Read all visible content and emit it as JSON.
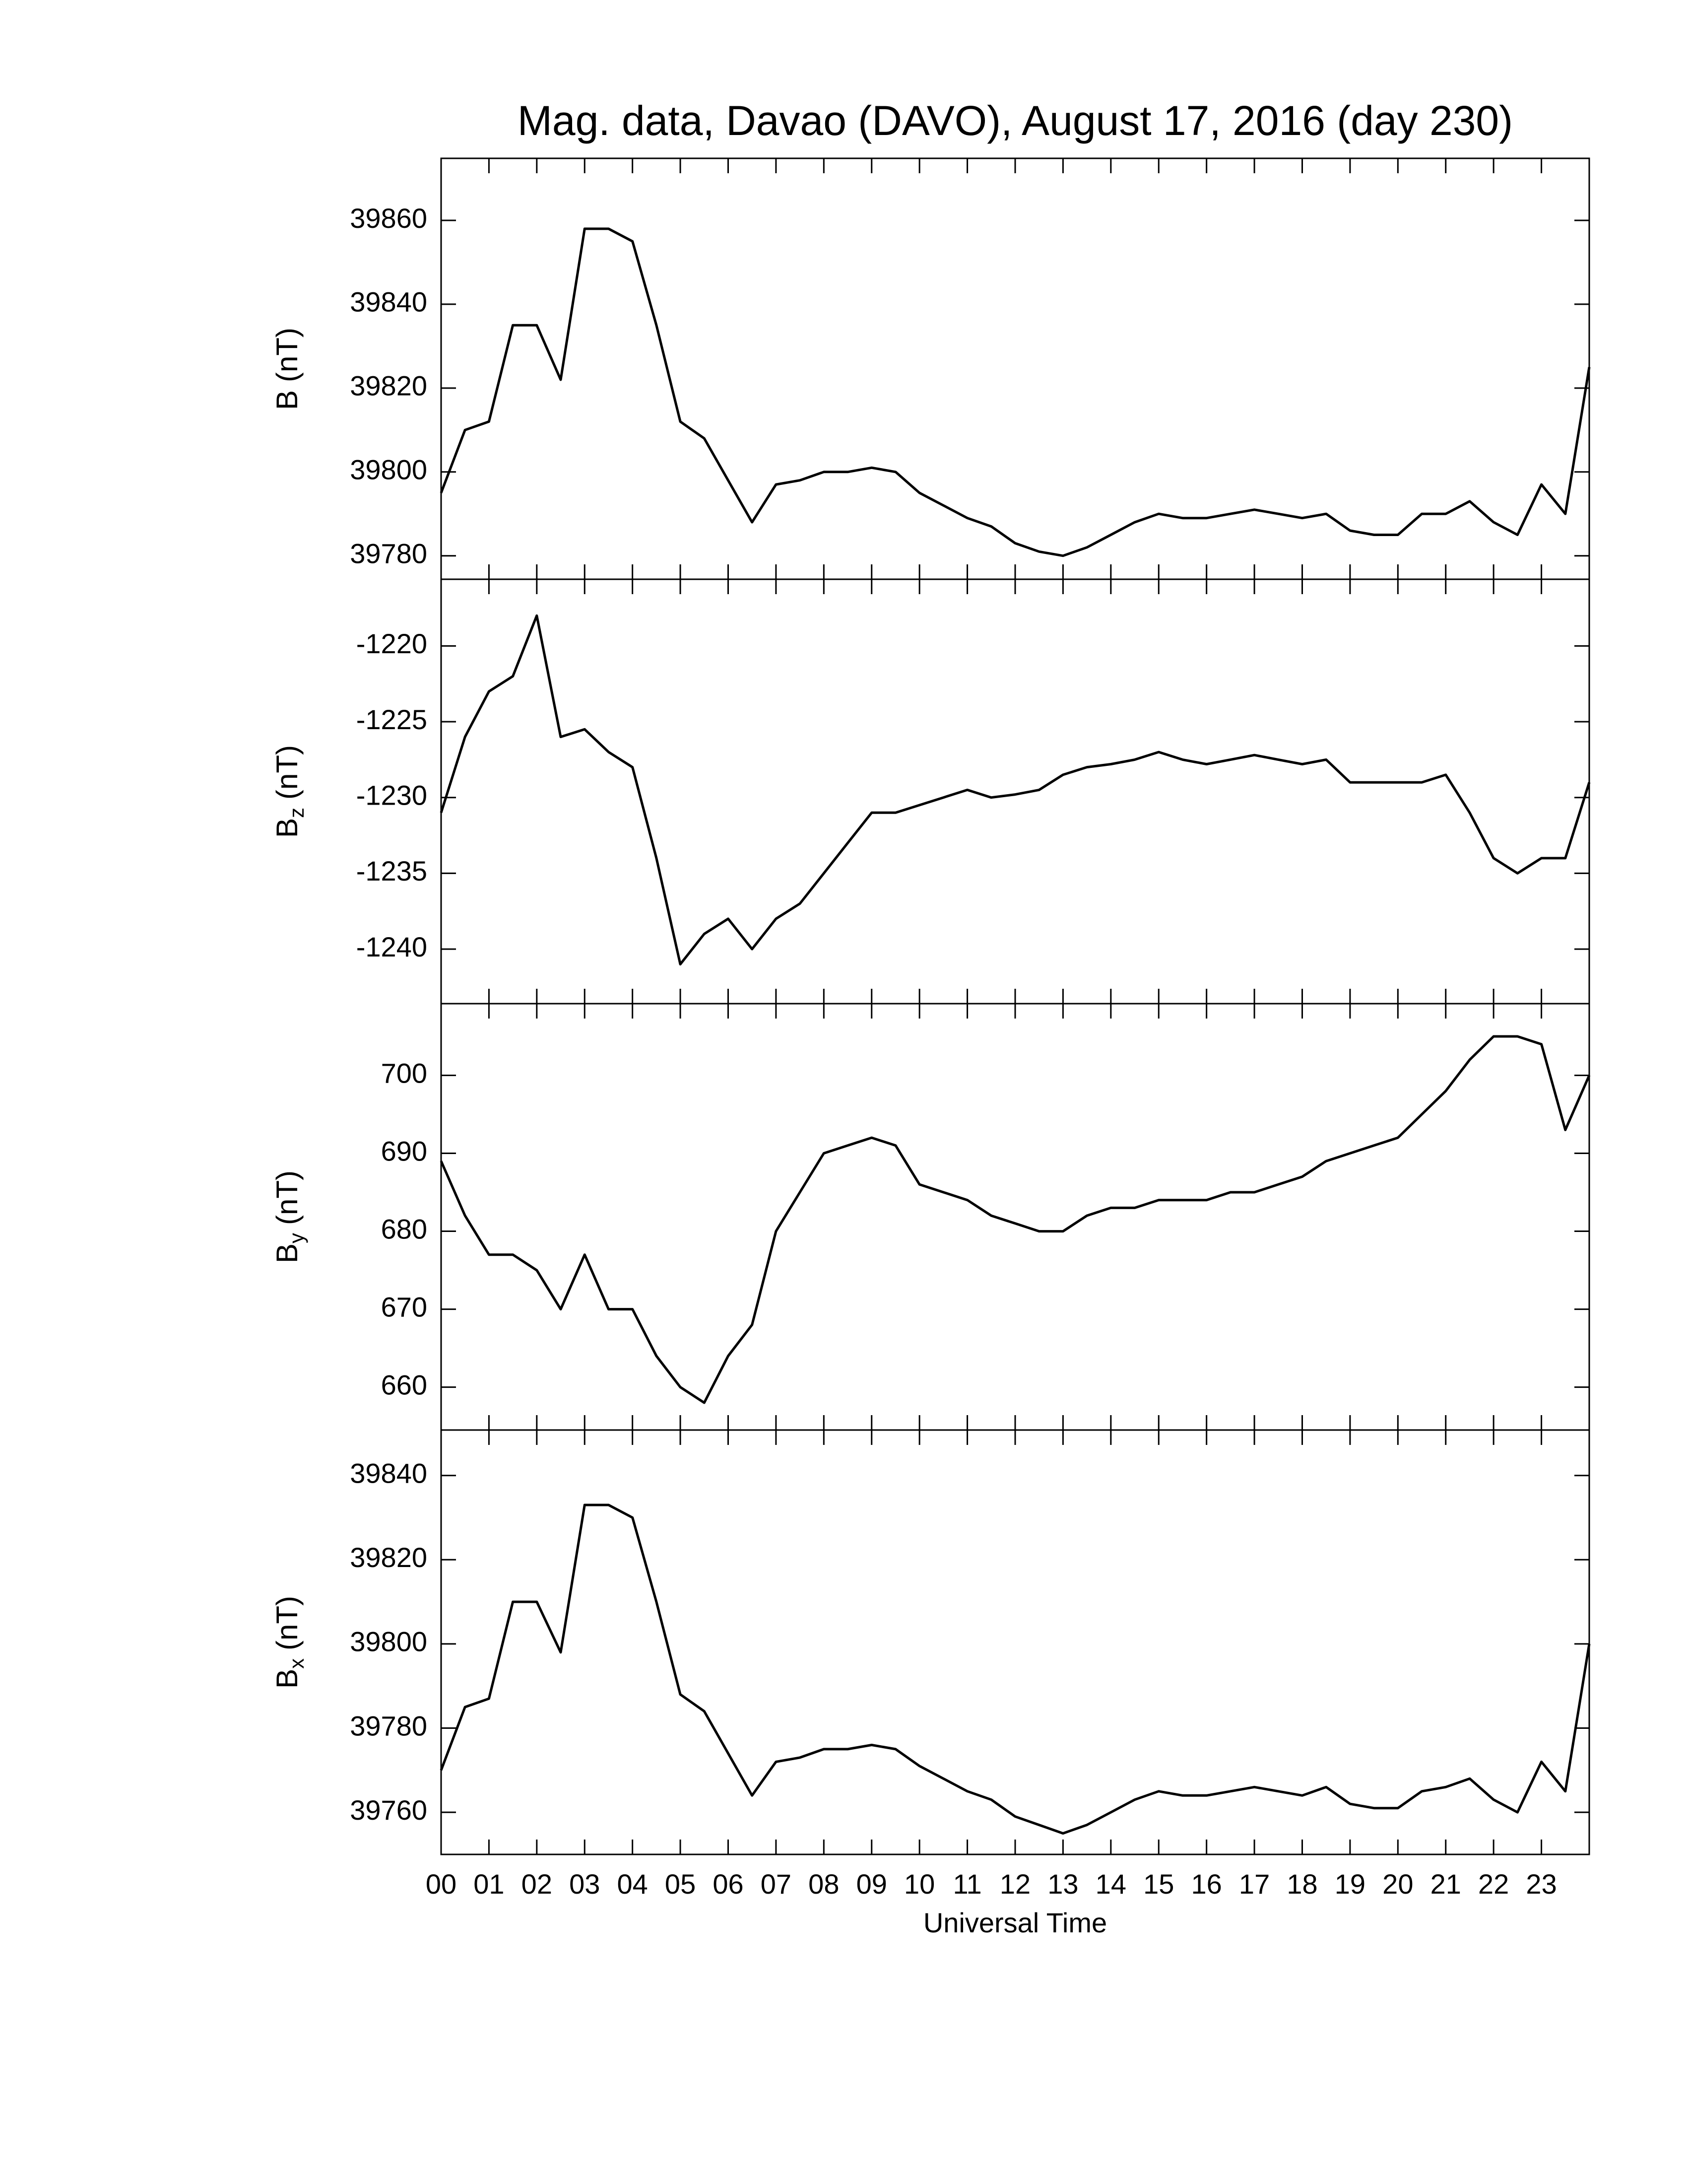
{
  "chart_data": [
    {
      "type": "line",
      "title": "Mag. data, Davao (DAVO), August 17, 2016 (day 230)",
      "ylabel_main": "B",
      "ylabel_unit": "(nT)",
      "color": "#000000",
      "x": [
        0,
        0.5,
        1,
        1.5,
        2,
        2.5,
        3,
        3.5,
        4,
        4.5,
        5,
        5.5,
        6,
        6.5,
        7,
        7.5,
        8,
        8.5,
        9,
        9.5,
        10,
        10.5,
        11,
        11.5,
        12,
        12.5,
        13,
        13.5,
        14,
        14.5,
        15,
        15.5,
        16,
        16.5,
        17,
        17.5,
        18,
        18.5,
        19,
        19.5,
        20,
        20.5,
        21,
        21.5,
        22,
        22.5,
        23,
        23.5,
        24
      ],
      "values": [
        39795,
        39810,
        39812,
        39835,
        39835,
        39822,
        39858,
        39858,
        39855,
        39835,
        39812,
        39808,
        39798,
        39788,
        39797,
        39798,
        39800,
        39800,
        39801,
        39800,
        39795,
        39792,
        39789,
        39787,
        39783,
        39781,
        39780,
        39782,
        39785,
        39788,
        39790,
        39789,
        39789,
        39790,
        39791,
        39790,
        39789,
        39790,
        39786,
        39785,
        39785,
        39790,
        39790,
        39793,
        39788,
        39785,
        39797,
        39790,
        39825
      ],
      "xlim": [
        0,
        24
      ],
      "ylim": [
        39774.4,
        39874.8
      ],
      "yticks": [
        39780,
        39800,
        39820,
        39840,
        39860
      ]
    },
    {
      "type": "line",
      "ylabel_main": "B",
      "ylabel_sub": "z",
      "ylabel_unit": "(nT)",
      "color": "#000000",
      "x": [
        0,
        0.5,
        1,
        1.5,
        2,
        2.5,
        3,
        3.5,
        4,
        4.5,
        5,
        5.5,
        6,
        6.5,
        7,
        7.5,
        8,
        8.5,
        9,
        9.5,
        10,
        10.5,
        11,
        11.5,
        12,
        12.5,
        13,
        13.5,
        14,
        14.5,
        15,
        15.5,
        16,
        16.5,
        17,
        17.5,
        18,
        18.5,
        19,
        19.5,
        20,
        20.5,
        21,
        21.5,
        22,
        22.5,
        23,
        23.5,
        24
      ],
      "values": [
        -1231,
        -1226,
        -1223,
        -1222,
        -1218,
        -1226,
        -1225.5,
        -1227,
        -1228,
        -1234,
        -1241,
        -1239,
        -1238,
        -1240,
        -1238,
        -1237,
        -1235,
        -1233,
        -1231,
        -1231,
        -1230.5,
        -1230,
        -1229.5,
        -1230,
        -1229.8,
        -1229.5,
        -1228.5,
        -1228,
        -1227.8,
        -1227.5,
        -1227,
        -1227.5,
        -1227.8,
        -1227.5,
        -1227.2,
        -1227.5,
        -1227.8,
        -1227.5,
        -1229,
        -1229,
        -1229,
        -1229,
        -1228.5,
        -1231,
        -1234,
        -1235,
        -1234,
        -1234,
        -1229
      ],
      "xlim": [
        0,
        24
      ],
      "ylim": [
        -1243.6,
        -1215.6
      ],
      "yticks": [
        -1240,
        -1235,
        -1230,
        -1225,
        -1220
      ]
    },
    {
      "type": "line",
      "ylabel_main": "B",
      "ylabel_sub": "y",
      "ylabel_unit": "(nT)",
      "color": "#000000",
      "x": [
        0,
        0.5,
        1,
        1.5,
        2,
        2.5,
        3,
        3.5,
        4,
        4.5,
        5,
        5.5,
        6,
        6.5,
        7,
        7.5,
        8,
        8.5,
        9,
        9.5,
        10,
        10.5,
        11,
        11.5,
        12,
        12.5,
        13,
        13.5,
        14,
        14.5,
        15,
        15.5,
        16,
        16.5,
        17,
        17.5,
        18,
        18.5,
        19,
        19.5,
        20,
        20.5,
        21,
        21.5,
        22,
        22.5,
        23,
        23.5,
        24
      ],
      "values": [
        689,
        682,
        677,
        677,
        675,
        670,
        677,
        670,
        670,
        664,
        660,
        658,
        664,
        668,
        680,
        685,
        690,
        691,
        692,
        691,
        686,
        685,
        684,
        682,
        681,
        680,
        680,
        682,
        683,
        683,
        684,
        684,
        684,
        685,
        685,
        686,
        687,
        689,
        690,
        691,
        692,
        695,
        698,
        702,
        705,
        705,
        704,
        693,
        700
      ],
      "xlim": [
        0,
        24
      ],
      "ylim": [
        654.5,
        709.2
      ],
      "yticks": [
        660,
        670,
        680,
        690,
        700
      ]
    },
    {
      "type": "line",
      "ylabel_main": "B",
      "ylabel_sub": "x",
      "ylabel_unit": "(nT)",
      "color": "#000000",
      "xlabel": "Universal Time",
      "x": [
        0,
        0.5,
        1,
        1.5,
        2,
        2.5,
        3,
        3.5,
        4,
        4.5,
        5,
        5.5,
        6,
        6.5,
        7,
        7.5,
        8,
        8.5,
        9,
        9.5,
        10,
        10.5,
        11,
        11.5,
        12,
        12.5,
        13,
        13.5,
        14,
        14.5,
        15,
        15.5,
        16,
        16.5,
        17,
        17.5,
        18,
        18.5,
        19,
        19.5,
        20,
        20.5,
        21,
        21.5,
        22,
        22.5,
        23,
        23.5,
        24
      ],
      "values": [
        39770,
        39785,
        39787,
        39810,
        39810,
        39798,
        39833,
        39833,
        39830,
        39810,
        39788,
        39784,
        39774,
        39764,
        39772,
        39773,
        39775,
        39775,
        39776,
        39775,
        39771,
        39768,
        39765,
        39763,
        39759,
        39757,
        39755,
        39757,
        39760,
        39763,
        39765,
        39764,
        39764,
        39765,
        39766,
        39765,
        39764,
        39766,
        39762,
        39761,
        39761,
        39765,
        39766,
        39768,
        39763,
        39760,
        39772,
        39765,
        39800
      ],
      "xlim": [
        0,
        24
      ],
      "ylim": [
        39750,
        39850.8
      ],
      "yticks": [
        39760,
        39780,
        39800,
        39820,
        39840
      ],
      "xticks": [
        {
          "value": 0,
          "label": "00"
        },
        {
          "value": 1,
          "label": "01"
        },
        {
          "value": 2,
          "label": "02"
        },
        {
          "value": 3,
          "label": "03"
        },
        {
          "value": 4,
          "label": "04"
        },
        {
          "value": 5,
          "label": "05"
        },
        {
          "value": 6,
          "label": "06"
        },
        {
          "value": 7,
          "label": "07"
        },
        {
          "value": 8,
          "label": "08"
        },
        {
          "value": 9,
          "label": "09"
        },
        {
          "value": 10,
          "label": "10"
        },
        {
          "value": 11,
          "label": "11"
        },
        {
          "value": 12,
          "label": "12"
        },
        {
          "value": 13,
          "label": "13"
        },
        {
          "value": 14,
          "label": "14"
        },
        {
          "value": 15,
          "label": "15"
        },
        {
          "value": 16,
          "label": "16"
        },
        {
          "value": 17,
          "label": "17"
        },
        {
          "value": 18,
          "label": "18"
        },
        {
          "value": 19,
          "label": "19"
        },
        {
          "value": 20,
          "label": "20"
        },
        {
          "value": 21,
          "label": "21"
        },
        {
          "value": 22,
          "label": "22"
        },
        {
          "value": 23,
          "label": "23"
        }
      ]
    }
  ]
}
